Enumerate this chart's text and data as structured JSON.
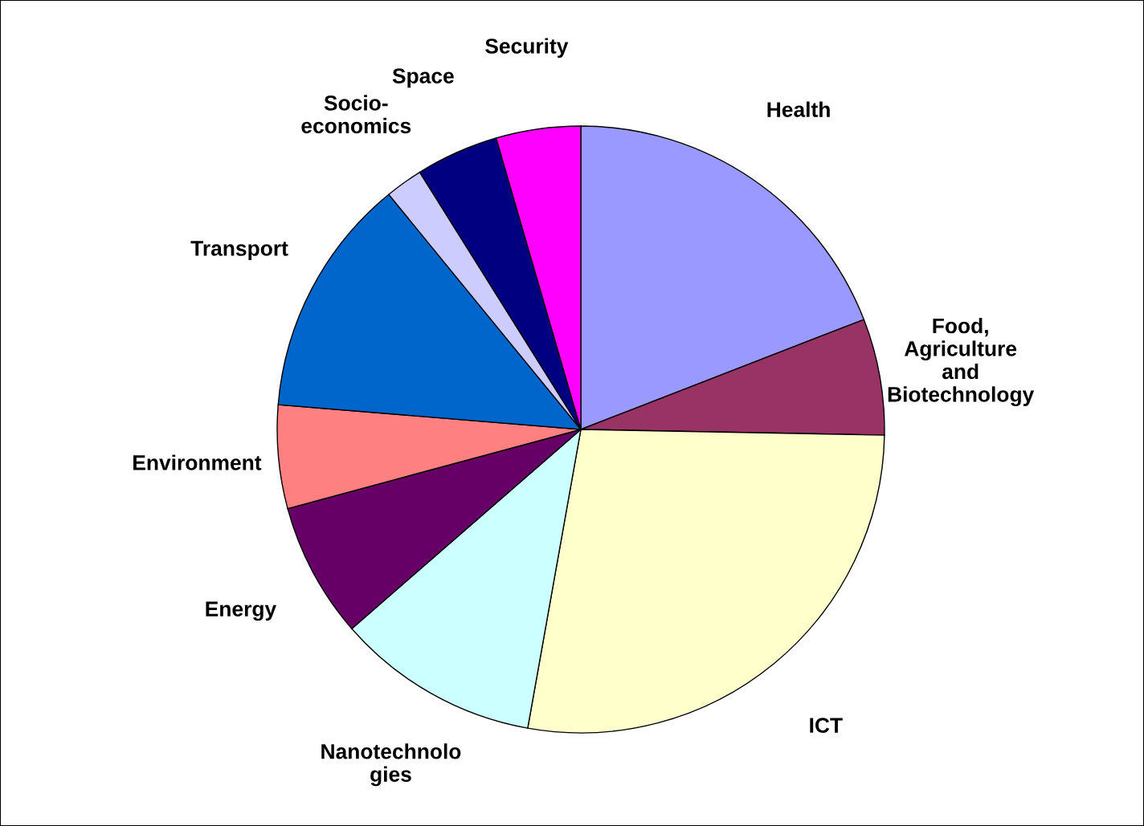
{
  "chart_data": {
    "type": "pie",
    "categories": [
      "Health",
      "Food,\nAgriculture\nand\nBiotechnology",
      "ICT",
      "Nanotechnolo\ngies",
      "Energy",
      "Environment",
      "Transport",
      "Socio-\neconomics",
      "Space",
      "Security"
    ],
    "values": [
      19.1,
      6.2,
      27.5,
      10.8,
      7.2,
      5.5,
      12.8,
      2.0,
      4.4,
      4.5
    ],
    "colors": [
      "#9999ff",
      "#993366",
      "#ffffcc",
      "#ccffff",
      "#660066",
      "#ff8080",
      "#0066cc",
      "#ccccff",
      "#000080",
      "#ff00ff"
    ]
  }
}
